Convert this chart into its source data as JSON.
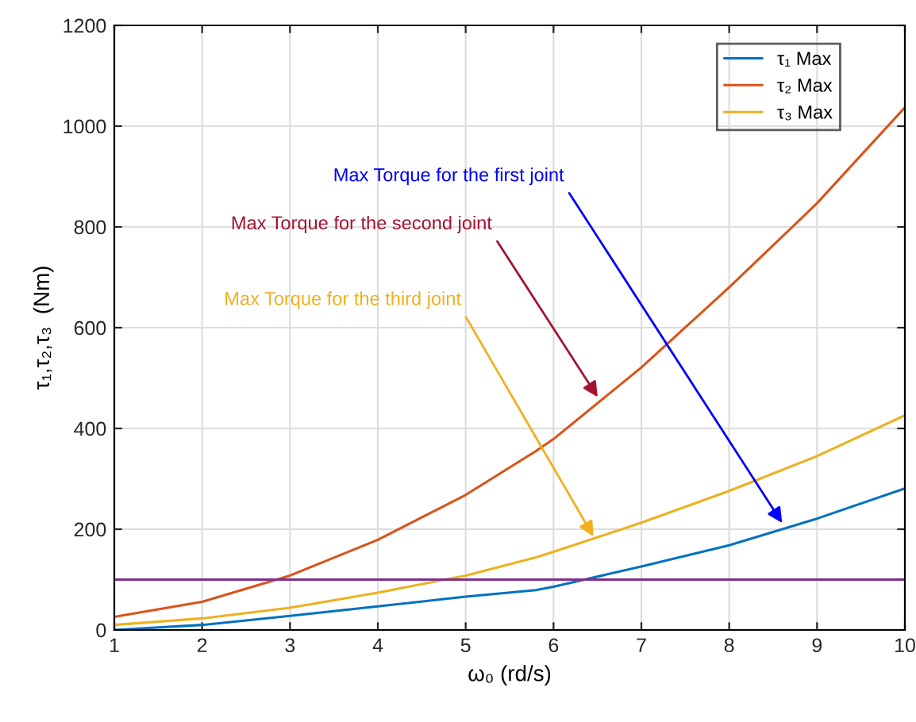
{
  "chart_data": {
    "type": "line",
    "xlabel": "ω₀ (rd/s)",
    "ylabel": "τ₁,τ₂,τ₃  (Nm)",
    "x": [
      1,
      2,
      3,
      4,
      5,
      5.8,
      6,
      7,
      8,
      9,
      10
    ],
    "series": [
      {
        "name": "τ₁ Max",
        "color": "#0072bd",
        "values": [
          0,
          10,
          28,
          47,
          66,
          79,
          86,
          126,
          168,
          221,
          281
        ]
      },
      {
        "name": "τ₂ Max",
        "color": "#d95319",
        "values": [
          26,
          56,
          108,
          179,
          268,
          355,
          379,
          521,
          680,
          847,
          1037
        ]
      },
      {
        "name": "τ₃ Max",
        "color": "#edb120",
        "values": [
          10,
          23,
          44,
          74,
          108,
          144,
          155,
          213,
          276,
          345,
          426
        ]
      }
    ],
    "xlim": [
      1,
      10
    ],
    "ylim": [
      0,
      1200
    ],
    "xticks": [
      1,
      2,
      3,
      4,
      5,
      6,
      7,
      8,
      9,
      10
    ],
    "yticks": [
      0,
      200,
      400,
      600,
      800,
      1000,
      1200
    ],
    "ref_lines": [
      {
        "axis": "y",
        "value": 100,
        "color": "#7e2f8e"
      }
    ],
    "annotations": [
      {
        "text": "Max Torque for the first joint",
        "x": 8.63,
        "y": 205
      },
      {
        "text": "Max Torque for the second joint",
        "x": 6.53,
        "y": 455
      },
      {
        "text": "Max Torque for the third joint",
        "x": 6.48,
        "y": 178
      }
    ],
    "grid": true,
    "legend": "top right"
  }
}
